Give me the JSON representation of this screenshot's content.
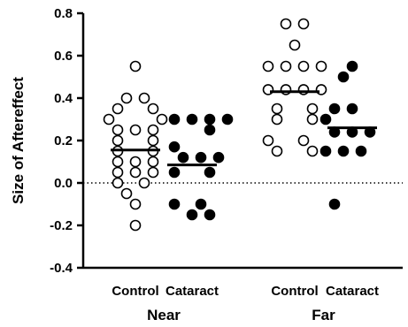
{
  "chart_data": {
    "type": "scatter",
    "ylabel": "Size of Aftereffect",
    "ylim": [
      -0.4,
      0.8
    ],
    "yticks": [
      "-0.4",
      "-0.2",
      "0.0",
      "0.2",
      "0.4",
      "0.6",
      "0.8"
    ],
    "reference_line": {
      "y": 0,
      "style": "dotted"
    },
    "categories": [
      "Control",
      "Cataract",
      "Control",
      "Cataract"
    ],
    "groups": [
      {
        "label": "Near",
        "categories": [
          0,
          1
        ]
      },
      {
        "label": "Far",
        "categories": [
          2,
          3
        ]
      }
    ],
    "series": [
      {
        "category": "Control",
        "group": "Near",
        "fill": "open",
        "mean": 0.155,
        "points": [
          {
            "x": 0,
            "y": 0.55
          },
          {
            "x": -0.5,
            "y": 0.4
          },
          {
            "x": 0.5,
            "y": 0.4
          },
          {
            "x": -1,
            "y": 0.35
          },
          {
            "x": 1,
            "y": 0.35
          },
          {
            "x": -1.5,
            "y": 0.3
          },
          {
            "x": 1.5,
            "y": 0.3
          },
          {
            "x": -1,
            "y": 0.25
          },
          {
            "x": 0,
            "y": 0.25
          },
          {
            "x": 1,
            "y": 0.25
          },
          {
            "x": -1,
            "y": 0.2
          },
          {
            "x": 1,
            "y": 0.2
          },
          {
            "x": -1,
            "y": 0.15
          },
          {
            "x": 1,
            "y": 0.15
          },
          {
            "x": -1,
            "y": 0.1
          },
          {
            "x": 0,
            "y": 0.1
          },
          {
            "x": 1,
            "y": 0.1
          },
          {
            "x": -1,
            "y": 0.05
          },
          {
            "x": 0,
            "y": 0.05
          },
          {
            "x": 1,
            "y": 0.05
          },
          {
            "x": -1,
            "y": 0.0
          },
          {
            "x": 0.5,
            "y": 0.0
          },
          {
            "x": -0.5,
            "y": -0.05
          },
          {
            "x": 0,
            "y": -0.1
          },
          {
            "x": 0,
            "y": -0.2
          }
        ]
      },
      {
        "category": "Cataract",
        "group": "Near",
        "fill": "filled",
        "mean": 0.085,
        "points": [
          {
            "x": -1,
            "y": 0.3
          },
          {
            "x": 0,
            "y": 0.3
          },
          {
            "x": 1,
            "y": 0.3
          },
          {
            "x": 2,
            "y": 0.3
          },
          {
            "x": 1,
            "y": 0.25
          },
          {
            "x": -1,
            "y": 0.17
          },
          {
            "x": -0.5,
            "y": 0.12
          },
          {
            "x": 0.5,
            "y": 0.12
          },
          {
            "x": 1.5,
            "y": 0.12
          },
          {
            "x": -1,
            "y": 0.05
          },
          {
            "x": 1,
            "y": 0.05
          },
          {
            "x": -1,
            "y": -0.1
          },
          {
            "x": 0.5,
            "y": -0.1
          },
          {
            "x": 0,
            "y": -0.15
          },
          {
            "x": 1,
            "y": -0.15
          }
        ]
      },
      {
        "category": "Control",
        "group": "Far",
        "fill": "open",
        "mean": 0.43,
        "points": [
          {
            "x": -0.5,
            "y": 0.75
          },
          {
            "x": 0.5,
            "y": 0.75
          },
          {
            "x": 0,
            "y": 0.65
          },
          {
            "x": -1.5,
            "y": 0.55
          },
          {
            "x": -0.5,
            "y": 0.55
          },
          {
            "x": 0.5,
            "y": 0.55
          },
          {
            "x": 1.5,
            "y": 0.55
          },
          {
            "x": -1.5,
            "y": 0.44
          },
          {
            "x": -0.5,
            "y": 0.44
          },
          {
            "x": 0.5,
            "y": 0.44
          },
          {
            "x": 1.5,
            "y": 0.44
          },
          {
            "x": -1,
            "y": 0.35
          },
          {
            "x": 1,
            "y": 0.35
          },
          {
            "x": -1,
            "y": 0.3
          },
          {
            "x": 1,
            "y": 0.3
          },
          {
            "x": -1.5,
            "y": 0.2
          },
          {
            "x": 0.5,
            "y": 0.2
          },
          {
            "x": -1,
            "y": 0.15
          },
          {
            "x": 1,
            "y": 0.15
          }
        ]
      },
      {
        "category": "Cataract",
        "group": "Far",
        "fill": "filled",
        "mean": 0.26,
        "points": [
          {
            "x": 0,
            "y": 0.55
          },
          {
            "x": -0.5,
            "y": 0.5
          },
          {
            "x": -1,
            "y": 0.35
          },
          {
            "x": 0,
            "y": 0.35
          },
          {
            "x": -1.5,
            "y": 0.3
          },
          {
            "x": -1,
            "y": 0.24
          },
          {
            "x": 0,
            "y": 0.24
          },
          {
            "x": 1,
            "y": 0.24
          },
          {
            "x": -1.5,
            "y": 0.15
          },
          {
            "x": -0.5,
            "y": 0.15
          },
          {
            "x": 0.5,
            "y": 0.15
          },
          {
            "x": -1,
            "y": -0.1
          }
        ]
      }
    ]
  }
}
